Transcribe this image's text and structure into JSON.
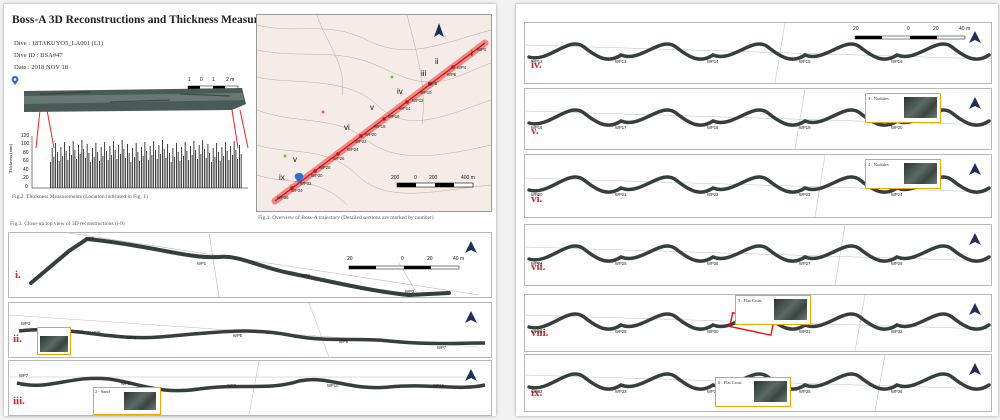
{
  "left": {
    "title": "Boss-A 3D Reconstructions and Thickness Measurements",
    "dive": "Dive : 18TAKUYO5_LA001 (L1)",
    "dive_id": "Dive ID : BSA#47",
    "date": "Date : 2018 NOV 18",
    "fig2_caption": "Fig.2. Thickness Measurements (Location indicated in Fig. 1)",
    "fig1_caption": "Fig.1. Overview of Boss-A trajectory (Detailed sections are marked by number)",
    "fig3_caption": "Fig.3. Close-up top view of 3D reconstructions (i-9)",
    "thickness_ylabel": "Thickness (mm)",
    "thickness_ticks": [
      "120",
      "100",
      "80",
      "60",
      "40",
      "20",
      "0"
    ],
    "small_scale": [
      "1",
      "0",
      "1",
      "2 m"
    ],
    "map_scale": [
      "200",
      "0",
      "200",
      "400 m"
    ],
    "map_sections": [
      "i",
      "ii",
      "iii",
      "iv",
      "v",
      "vi",
      "v",
      "ix"
    ],
    "map_wps": [
      "WP0",
      "WP4",
      "WP6",
      "WP8",
      "WP10",
      "WP12",
      "WP14",
      "WP16",
      "WP18",
      "WP20",
      "WP22",
      "WP24",
      "WP26",
      "WP28",
      "WP30",
      "WP32",
      "WP34",
      "WP36"
    ],
    "panels": [
      {
        "roman": "i.",
        "wps": [
          "WP0",
          "WP1",
          "WP2",
          "WP3"
        ],
        "scale": [
          "20",
          "0",
          "20",
          "40 m"
        ]
      },
      {
        "roman": "ii.",
        "wps": [
          "WP3",
          "WP4",
          "WP5",
          "WP6",
          "WP7"
        ],
        "inset": "1 : Pillowy crust"
      },
      {
        "roman": "iii.",
        "wps": [
          "WP7",
          "WP8",
          "WP9",
          "WP10",
          "WP11"
        ],
        "inset": "2 : Sand"
      }
    ]
  },
  "right": {
    "scale": [
      "20",
      "0",
      "20",
      "40 m"
    ],
    "panels": [
      {
        "roman": "iv.",
        "wps": [
          "WP12",
          "WP13",
          "WP14",
          "WP15",
          "WP16"
        ]
      },
      {
        "roman": "v.",
        "wps": [
          "WP16",
          "WP17",
          "WP18",
          "WP19",
          "WP20"
        ],
        "inset": "3 : Nodules"
      },
      {
        "roman": "vi.",
        "wps": [
          "WP20",
          "WP21",
          "WP22",
          "WP23",
          "WP24"
        ],
        "inset": "4 : Nodules"
      },
      {
        "roman": "vii.",
        "wps": [
          "WP24",
          "WP25",
          "WP26",
          "WP27",
          "WP28"
        ]
      },
      {
        "roman": "viii.",
        "wps": [
          "WP28",
          "WP29",
          "WP30",
          "WP31",
          "WP32"
        ],
        "inset": "5 : Flat Crust"
      },
      {
        "roman": "ix.",
        "wps": [
          "WP32",
          "WP33",
          "WP34",
          "WP35",
          "WP36"
        ],
        "inset": "6 : Flat Crust"
      }
    ]
  }
}
